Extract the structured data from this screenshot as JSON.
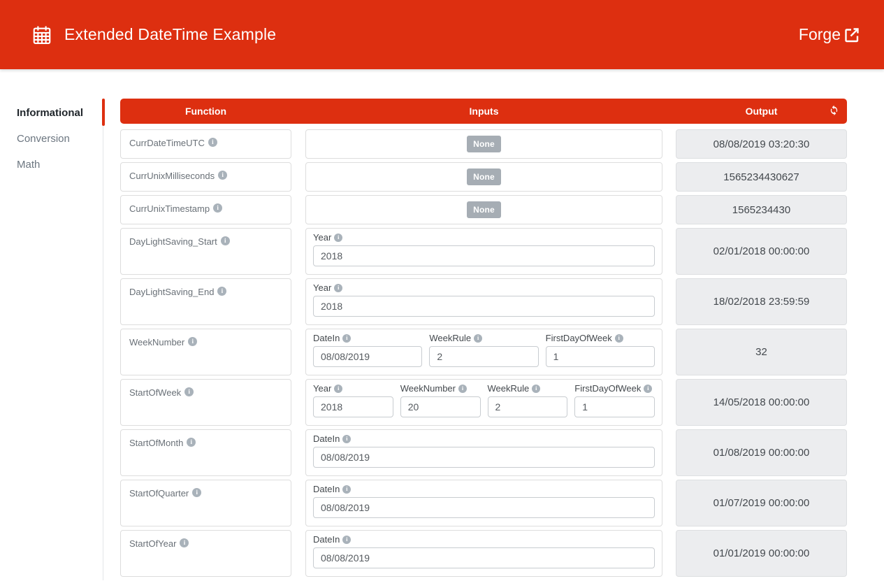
{
  "header": {
    "title": "Extended DateTime Example",
    "forge_label": "Forge",
    "app_icon": "calendar-icon",
    "forge_icon": "external-link-icon"
  },
  "sidebar": {
    "items": [
      {
        "label": "Informational",
        "active": true
      },
      {
        "label": "Conversion",
        "active": false
      },
      {
        "label": "Math",
        "active": false
      }
    ]
  },
  "table": {
    "columns": [
      "Function",
      "Inputs",
      "Output"
    ],
    "refresh_icon": "refresh-icon",
    "none_label": "None",
    "rows": [
      {
        "function": "CurrDateTimeUTC",
        "inputs": [],
        "output": "08/08/2019 03:20:30"
      },
      {
        "function": "CurrUnixMilliseconds",
        "inputs": [],
        "output": "1565234430627"
      },
      {
        "function": "CurrUnixTimestamp",
        "inputs": [],
        "output": "1565234430"
      },
      {
        "function": "DayLightSaving_Start",
        "inputs": [
          {
            "label": "Year",
            "value": "2018"
          }
        ],
        "output": "02/01/2018 00:00:00"
      },
      {
        "function": "DayLightSaving_End",
        "inputs": [
          {
            "label": "Year",
            "value": "2018"
          }
        ],
        "output": "18/02/2018 23:59:59"
      },
      {
        "function": "WeekNumber",
        "inputs": [
          {
            "label": "DateIn",
            "value": "08/08/2019"
          },
          {
            "label": "WeekRule",
            "value": "2"
          },
          {
            "label": "FirstDayOfWeek",
            "value": "1"
          }
        ],
        "output": "32"
      },
      {
        "function": "StartOfWeek",
        "inputs": [
          {
            "label": "Year",
            "value": "2018"
          },
          {
            "label": "WeekNumber",
            "value": "20"
          },
          {
            "label": "WeekRule",
            "value": "2"
          },
          {
            "label": "FirstDayOfWeek",
            "value": "1"
          }
        ],
        "output": "14/05/2018 00:00:00"
      },
      {
        "function": "StartOfMonth",
        "inputs": [
          {
            "label": "DateIn",
            "value": "08/08/2019"
          }
        ],
        "output": "01/08/2019 00:00:00"
      },
      {
        "function": "StartOfQuarter",
        "inputs": [
          {
            "label": "DateIn",
            "value": "08/08/2019"
          }
        ],
        "output": "01/07/2019 00:00:00"
      },
      {
        "function": "StartOfYear",
        "inputs": [
          {
            "label": "DateIn",
            "value": "08/08/2019"
          }
        ],
        "output": "01/01/2019 00:00:00"
      }
    ]
  },
  "colors": {
    "accent_red": "#DD2F10",
    "none_badge": "#A6ADB4",
    "output_bg": "#ECEDEF"
  }
}
